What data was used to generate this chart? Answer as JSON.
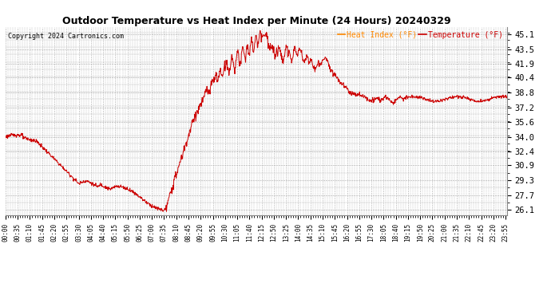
{
  "title": "Outdoor Temperature vs Heat Index per Minute (24 Hours) 20240329",
  "copyright": "Copyright 2024 Cartronics.com",
  "legend_heat_index": "Heat Index (°F)",
  "legend_temperature": "Temperature (°F)",
  "y_ticks": [
    26.1,
    27.7,
    29.3,
    30.9,
    32.4,
    34.0,
    35.6,
    37.2,
    38.8,
    40.4,
    41.9,
    43.5,
    45.1
  ],
  "ylim": [
    25.5,
    45.9
  ],
  "line_color": "#cc0000",
  "background_color": "#ffffff",
  "grid_color": "#aaaaaa",
  "title_color": "#000000",
  "copyright_color": "#000000",
  "legend_hi_color": "#ff8800",
  "legend_temp_color": "#cc0000",
  "tick_interval": 35
}
